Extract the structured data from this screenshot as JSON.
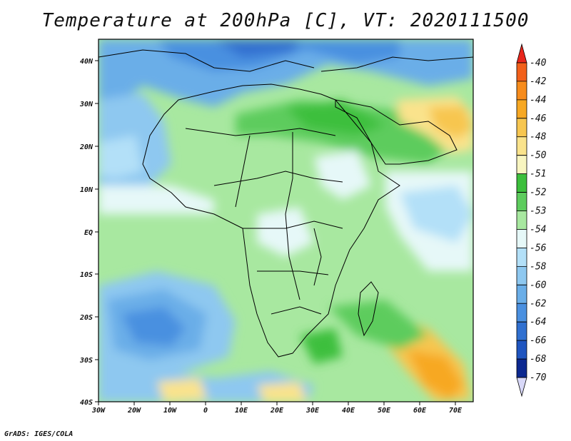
{
  "title": "Temperature at 200hPa [C], VT: 2020111500",
  "footer": "GrADS: IGES/COLA",
  "map": {
    "lon_range": [
      -30,
      75
    ],
    "lat_range": [
      -40,
      45
    ],
    "lon_ticks": [
      "30W",
      "20W",
      "10W",
      "0",
      "10E",
      "20E",
      "30E",
      "40E",
      "50E",
      "60E",
      "70E"
    ],
    "lat_ticks": [
      "40N",
      "30N",
      "20N",
      "10N",
      "EQ",
      "10S",
      "20S",
      "30S",
      "40S"
    ]
  },
  "colorbar": {
    "levels": [
      "-40",
      "-42",
      "-44",
      "-46",
      "-48",
      "-50",
      "-51",
      "-52",
      "-53",
      "-54",
      "-56",
      "-58",
      "-60",
      "-62",
      "-64",
      "-66",
      "-68",
      "-70"
    ],
    "colors": [
      "#e8261c",
      "#f2601a",
      "#f78c1c",
      "#f7a823",
      "#f7c650",
      "#fae38c",
      "#f8f5c0",
      "#3cbf3c",
      "#5dcc5d",
      "#a8e8a0",
      "#e6f8f8",
      "#b3e0f8",
      "#8ec8f0",
      "#6aaee8",
      "#4a90e0",
      "#3070d0",
      "#1f55c0",
      "#0c2890",
      "#d8d8f8"
    ]
  }
}
